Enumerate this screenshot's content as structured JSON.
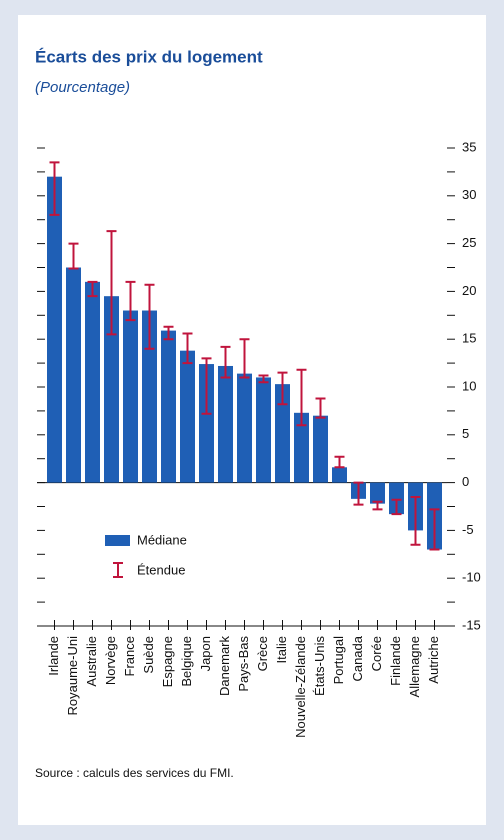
{
  "chart_data": {
    "type": "bar",
    "title": "Écarts des prix du logement",
    "subtitle": "(Pourcentage)",
    "source": "Source : calculs des services du FMI.",
    "categories": [
      "Irlande",
      "Royaume-Uni",
      "Australie",
      "Norvège",
      "France",
      "Suède",
      "Espagne",
      "Belgique",
      "Japon",
      "Danemark",
      "Pays-Bas",
      "Grèce",
      "Italie",
      "Nouvelle-Zélande",
      "États-Unis",
      "Portugal",
      "Canada",
      "Corée",
      "Finlande",
      "Allemagne",
      "Autriche"
    ],
    "series": [
      {
        "name": "Médiane",
        "color": "#1f5fb5",
        "values": [
          32,
          22.5,
          21,
          19.5,
          18,
          18,
          15.9,
          13.8,
          12.4,
          12.2,
          11.4,
          11,
          10.3,
          7.3,
          7,
          1.6,
          -1.7,
          -2.2,
          -3.3,
          -5,
          -7
        ]
      },
      {
        "name": "Étendue",
        "color": "#c0143c",
        "low": [
          28,
          22.4,
          19.5,
          15.5,
          17,
          14,
          15,
          12.5,
          7.2,
          11,
          11,
          10.5,
          8.2,
          6,
          6.8,
          1.6,
          -2.3,
          -2.8,
          -3.3,
          -6.5,
          -7
        ],
        "high": [
          33.5,
          25,
          21,
          26.3,
          21,
          20.7,
          16.3,
          15.6,
          13,
          14.2,
          15,
          11.2,
          11.5,
          11.8,
          8.8,
          2.7,
          0,
          -2,
          -1.8,
          -1.5,
          -2.8
        ]
      }
    ],
    "ylim": [
      -15,
      35
    ],
    "yticks": [
      -15,
      -10,
      -5,
      0,
      5,
      10,
      15,
      20,
      25,
      30,
      35
    ]
  }
}
